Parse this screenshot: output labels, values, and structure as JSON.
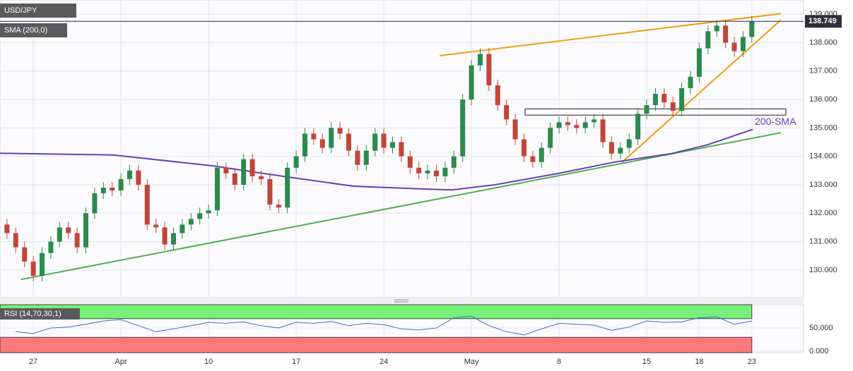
{
  "chart_data": [
    {
      "type": "candlestick",
      "title": "USD/JPY",
      "indicator": "SMA (200,0)",
      "up_color": "#2b8a4e",
      "down_color": "#c2453a",
      "grid": true,
      "xlim": [
        -1.9,
        43.95
      ],
      "xticks": [
        {
          "value": 0,
          "label": "27"
        },
        {
          "value": 5,
          "label": "Apr"
        },
        {
          "value": 10,
          "label": "10"
        },
        {
          "value": 15,
          "label": "17"
        },
        {
          "value": 20,
          "label": "24"
        },
        {
          "value": 25,
          "label": "May"
        },
        {
          "value": 30,
          "label": "8"
        },
        {
          "value": 35,
          "label": "15"
        },
        {
          "value": 38,
          "label": "18"
        },
        {
          "value": 41,
          "label": "23"
        }
      ],
      "ylim": [
        129.03,
        139.5
      ],
      "yticks": [
        {
          "value": 130,
          "label": "130.000"
        },
        {
          "value": 131,
          "label": "131.000"
        },
        {
          "value": 132,
          "label": "132.000"
        },
        {
          "value": 133,
          "label": "133.000"
        },
        {
          "value": 134,
          "label": "134.000"
        },
        {
          "value": 135,
          "label": "135.000"
        },
        {
          "value": 136,
          "label": "136.000"
        },
        {
          "value": 137,
          "label": "137.000"
        },
        {
          "value": 138,
          "label": "138.000"
        },
        {
          "value": 139,
          "label": "139.000"
        }
      ],
      "last_price": 138.749,
      "x": [
        -1.5,
        -1,
        -0.5,
        0,
        0.5,
        1,
        1.5,
        2,
        2.5,
        3,
        3.5,
        4,
        4.5,
        5,
        5.5,
        6,
        6.5,
        7,
        7.5,
        8,
        8.5,
        9,
        9.5,
        10,
        10.5,
        11,
        11.5,
        12,
        12.5,
        13,
        13.5,
        14,
        14.5,
        15,
        15.5,
        16,
        16.5,
        17,
        17.5,
        18,
        18.5,
        19,
        19.5,
        20,
        20.5,
        21,
        21.5,
        22,
        22.5,
        23,
        23.5,
        24,
        24.5,
        25,
        25.5,
        26,
        26.5,
        27,
        27.5,
        28,
        28.5,
        29,
        29.5,
        30,
        30.5,
        31,
        31.5,
        32,
        32.5,
        33,
        33.5,
        34,
        34.5,
        35,
        35.5,
        36,
        36.5,
        37,
        37.5,
        38,
        38.5,
        39,
        39.5,
        40,
        40.5,
        41
      ],
      "open": [
        131.6,
        131.3,
        130.8,
        130.3,
        129.8,
        130.6,
        131.0,
        131.5,
        131.3,
        130.8,
        132.0,
        132.7,
        132.9,
        132.8,
        133.2,
        133.5,
        133.0,
        131.6,
        131.5,
        130.9,
        131.3,
        131.6,
        131.8,
        132.0,
        132.1,
        133.6,
        133.4,
        133.0,
        133.9,
        133.3,
        133.2,
        132.3,
        132.2,
        133.6,
        134.0,
        134.8,
        134.6,
        134.3,
        135.0,
        134.8,
        134.2,
        133.7,
        134.2,
        134.8,
        134.3,
        134.5,
        134.0,
        133.6,
        133.4,
        133.5,
        133.3,
        133.6,
        134.0,
        136.0,
        137.2,
        137.6,
        136.5,
        135.8,
        135.3,
        134.6,
        134.0,
        133.8,
        134.3,
        135.0,
        135.2,
        135.1,
        135.0,
        135.2,
        135.3,
        134.5,
        134.1,
        134.3,
        134.6,
        135.5,
        135.8,
        136.2,
        135.9,
        135.6,
        136.4,
        136.8,
        137.8,
        138.4,
        138.6,
        138.0,
        137.7,
        138.2
      ],
      "high": [
        131.8,
        131.5,
        131.0,
        130.5,
        130.8,
        131.2,
        131.7,
        131.7,
        131.5,
        132.2,
        132.9,
        133.1,
        133.1,
        133.4,
        133.7,
        133.7,
        133.2,
        131.8,
        131.7,
        131.5,
        131.8,
        132.0,
        132.2,
        132.3,
        133.8,
        133.8,
        133.6,
        134.1,
        134.1,
        133.5,
        133.4,
        132.5,
        133.8,
        134.2,
        135.0,
        135.0,
        134.8,
        135.2,
        135.2,
        135.0,
        134.4,
        134.4,
        135.0,
        135.0,
        134.7,
        134.7,
        134.2,
        133.8,
        133.7,
        133.7,
        133.8,
        134.2,
        136.2,
        137.4,
        137.8,
        137.8,
        136.7,
        136.0,
        135.5,
        134.8,
        134.2,
        134.5,
        135.2,
        135.4,
        135.4,
        135.3,
        135.4,
        135.5,
        135.5,
        134.7,
        134.5,
        134.8,
        135.7,
        136.0,
        136.4,
        136.4,
        136.1,
        136.6,
        137.0,
        138.0,
        138.6,
        138.8,
        138.8,
        138.2,
        138.4,
        138.95
      ],
      "low": [
        131.1,
        130.6,
        130.1,
        129.6,
        129.6,
        130.4,
        130.8,
        131.1,
        130.6,
        130.6,
        131.8,
        132.5,
        132.6,
        132.6,
        133.0,
        132.8,
        131.4,
        131.3,
        130.7,
        130.7,
        131.1,
        131.4,
        131.6,
        131.8,
        131.9,
        133.2,
        132.8,
        132.8,
        133.1,
        133.0,
        132.1,
        132.0,
        132.0,
        133.4,
        133.8,
        134.4,
        134.1,
        134.1,
        134.6,
        134.0,
        133.5,
        133.5,
        134.0,
        134.1,
        134.1,
        133.8,
        133.4,
        133.2,
        133.2,
        133.1,
        133.1,
        133.4,
        133.8,
        135.8,
        137.0,
        136.3,
        135.6,
        135.1,
        134.4,
        133.8,
        133.6,
        133.6,
        134.1,
        134.8,
        134.9,
        134.8,
        134.8,
        135.0,
        134.3,
        133.9,
        133.9,
        134.1,
        134.4,
        135.3,
        135.6,
        135.7,
        135.4,
        135.4,
        136.2,
        136.6,
        137.6,
        138.2,
        137.8,
        137.5,
        137.5,
        138.0
      ],
      "close": [
        131.3,
        130.8,
        130.3,
        129.8,
        130.6,
        131.0,
        131.5,
        131.3,
        130.8,
        132.0,
        132.7,
        132.9,
        132.8,
        133.2,
        133.5,
        133.0,
        131.6,
        131.5,
        130.9,
        131.3,
        131.6,
        131.8,
        132.0,
        132.1,
        133.6,
        133.4,
        133.0,
        133.9,
        133.3,
        133.2,
        132.3,
        132.2,
        133.6,
        134.0,
        134.8,
        134.6,
        134.3,
        135.0,
        134.8,
        134.2,
        133.7,
        134.2,
        134.8,
        134.3,
        134.5,
        134.0,
        133.6,
        133.4,
        133.5,
        133.3,
        133.6,
        134.0,
        136.0,
        137.2,
        137.6,
        136.5,
        135.8,
        135.3,
        134.6,
        134.0,
        133.8,
        134.3,
        135.0,
        135.2,
        135.1,
        135.0,
        135.2,
        135.3,
        134.5,
        134.1,
        134.3,
        134.6,
        135.5,
        135.8,
        136.2,
        135.9,
        135.6,
        136.4,
        136.8,
        137.8,
        138.4,
        138.6,
        138.0,
        137.7,
        138.2,
        138.75
      ],
      "sma": {
        "name": "200-SMA",
        "color": "#6a3fb5",
        "x": [
          -1.9,
          4.56,
          10.2,
          14.23,
          18.27,
          22.3,
          23.9,
          26.33,
          29.96,
          33.19,
          36.41,
          38.43,
          41.05
        ],
        "values": [
          134.11,
          134.05,
          133.67,
          133.3,
          132.95,
          132.85,
          132.82,
          133.0,
          133.4,
          133.8,
          134.1,
          134.4,
          134.95
        ]
      },
      "trendlines": [
        {
          "color": "#4caf50",
          "x": [
            -0.7,
            42.66
          ],
          "values": [
            129.67,
            134.83
          ]
        },
        {
          "color": "#f39c12",
          "x": [
            23.19,
            42.66
          ],
          "values": [
            137.54,
            139.02
          ]
        },
        {
          "color": "#f39c12",
          "x": [
            33.59,
            42.66
          ],
          "values": [
            133.79,
            138.8
          ]
        }
      ],
      "zone": {
        "x": [
          28.06,
          42.94
        ],
        "values": [
          135.45,
          135.67
        ]
      }
    },
    {
      "type": "rsi",
      "title": "RSI (14,70,30,1)",
      "color": "#3b6fd6",
      "upper": 70,
      "lower": 30,
      "upper_color": "#77f077",
      "lower_color": "#ff7b7b",
      "xlim": [
        -1.9,
        43.95
      ],
      "ylim": [
        -3,
        100
      ],
      "yticks": [
        {
          "value": 50,
          "label": "50.000"
        },
        {
          "value": 0,
          "label": "0.000"
        }
      ],
      "x": [
        -1,
        0,
        1,
        2,
        3,
        4,
        5,
        6,
        7,
        8,
        9,
        10,
        11,
        12,
        13,
        14,
        15,
        16,
        17,
        18,
        19,
        20,
        21,
        22,
        23,
        24,
        25,
        26,
        27,
        28,
        29,
        30,
        31,
        32,
        33,
        34,
        35,
        36,
        37,
        38,
        39,
        40,
        41
      ],
      "values": [
        42,
        38,
        50,
        52,
        58,
        65,
        68,
        55,
        42,
        48,
        55,
        62,
        60,
        63,
        55,
        50,
        62,
        60,
        64,
        55,
        60,
        57,
        48,
        46,
        50,
        72,
        75,
        55,
        42,
        35,
        48,
        60,
        58,
        56,
        45,
        52,
        65,
        62,
        63,
        72,
        74,
        58,
        65
      ]
    }
  ]
}
